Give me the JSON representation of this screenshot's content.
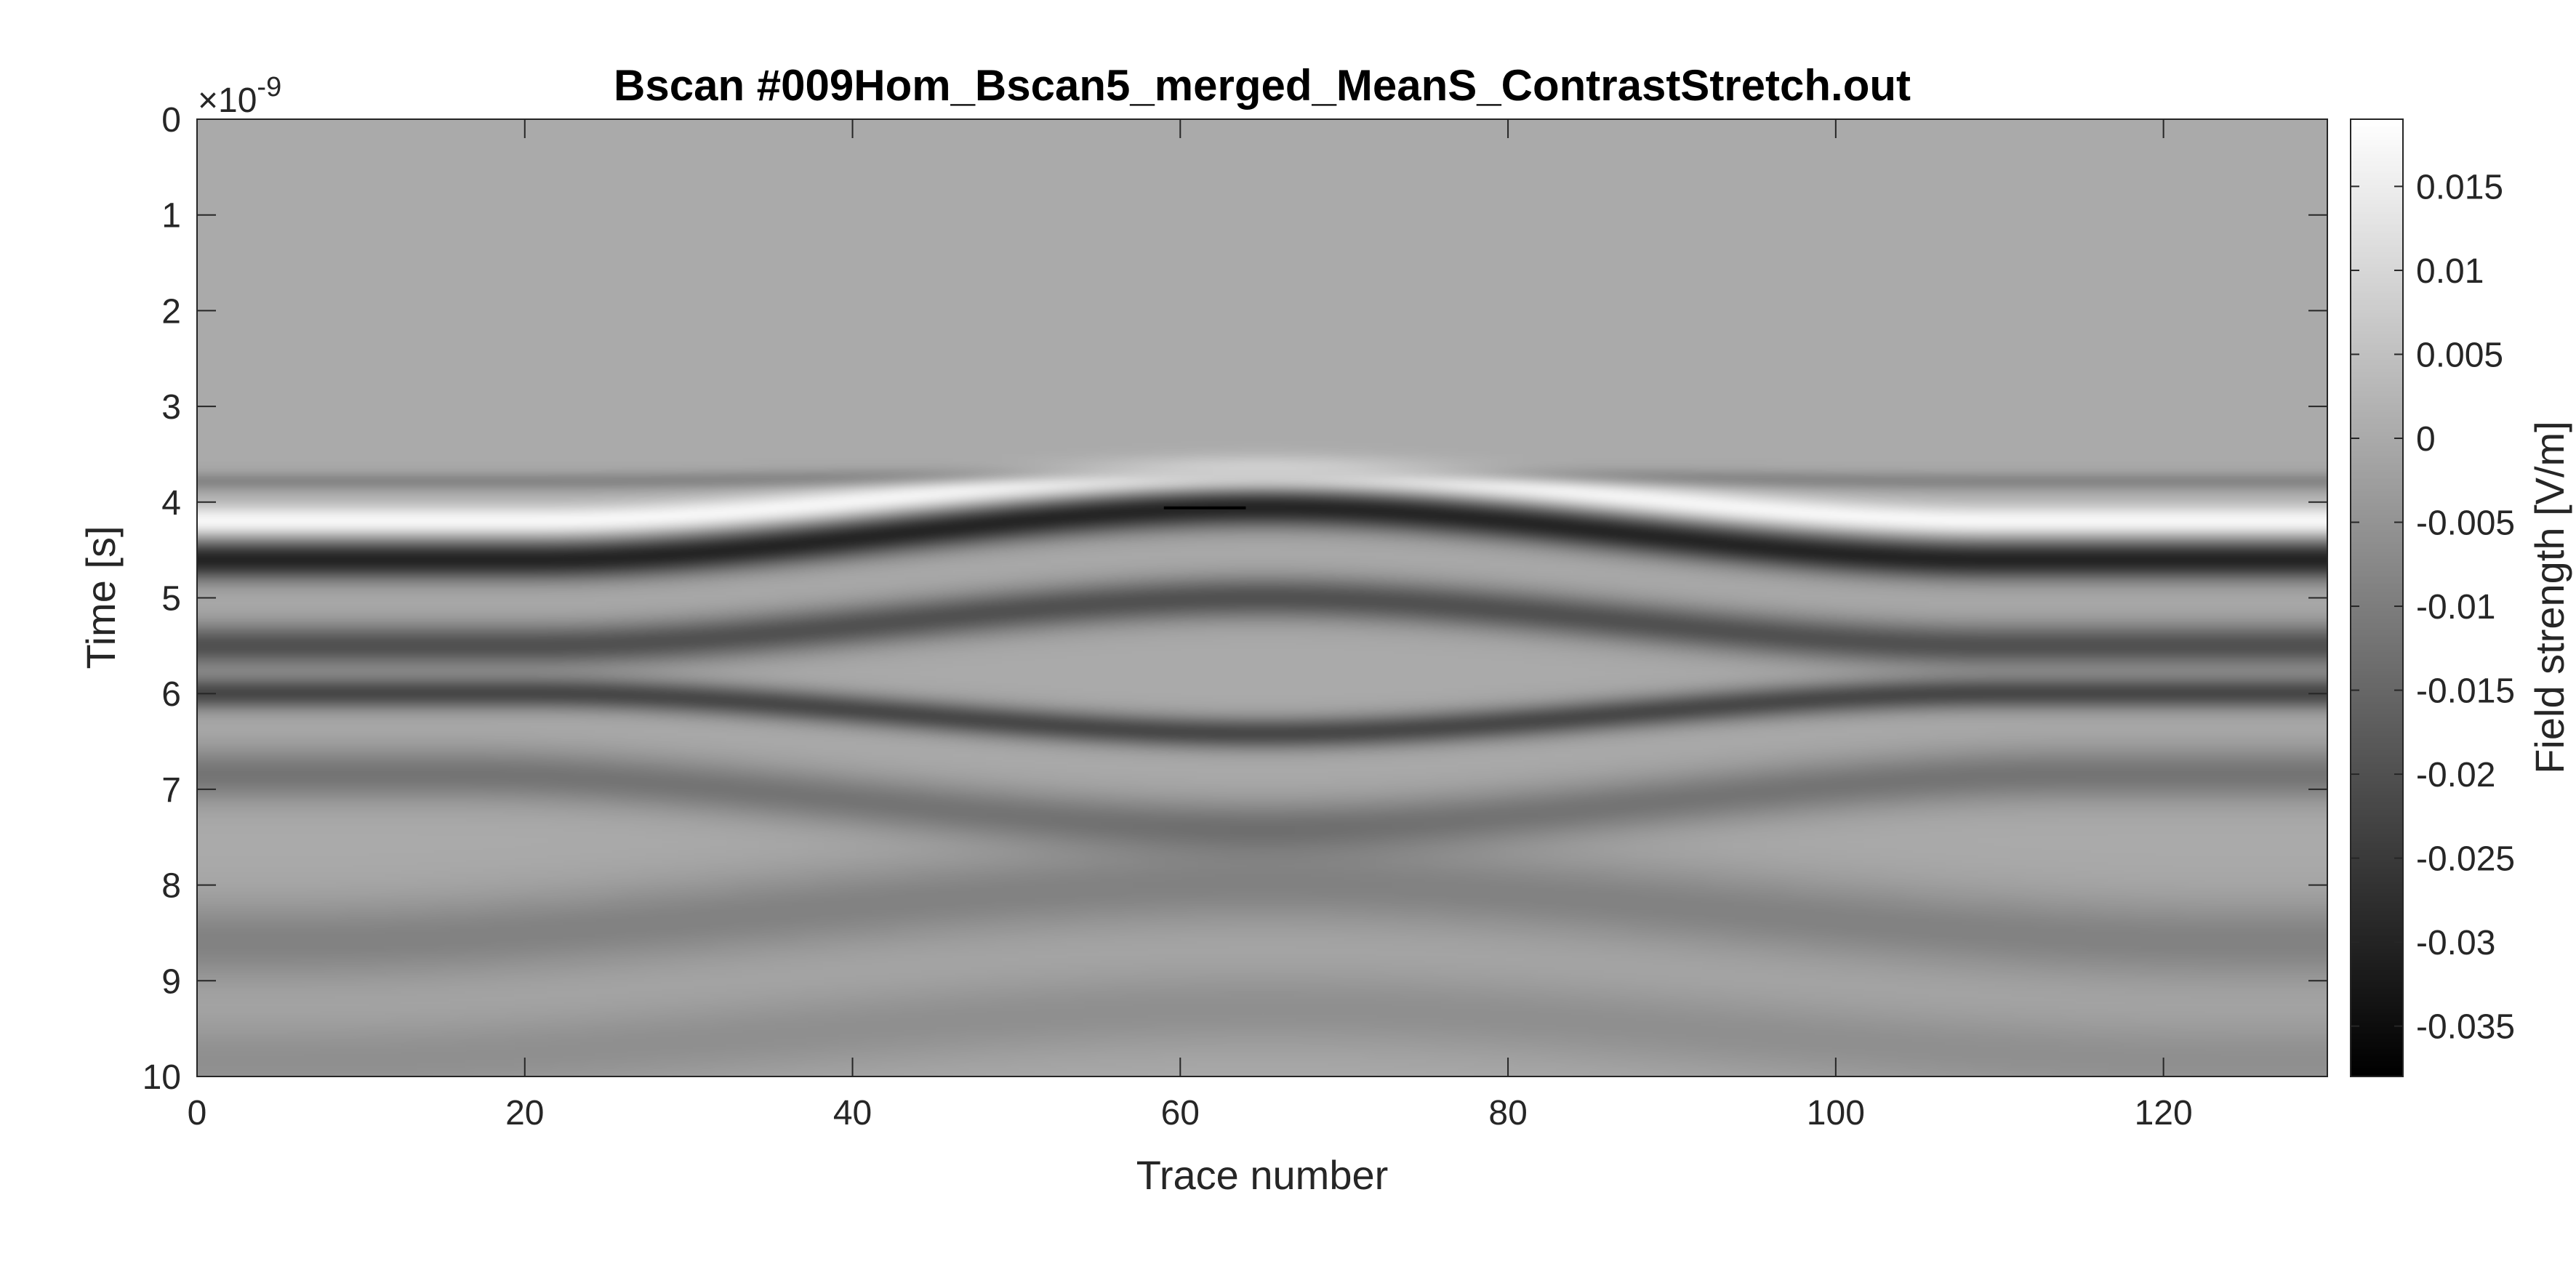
{
  "chart_data": {
    "type": "heatmap",
    "title": "Bscan #009Hom_Bscan5_merged_MeanS_ContrastStretch.out",
    "xlabel": "Trace number",
    "ylabel": "Time [s]",
    "y_exponent": {
      "base": "×10",
      "power": "-9"
    },
    "xlim": [
      0,
      130
    ],
    "ylim": [
      0,
      10
    ],
    "y_reversed": true,
    "x_ticks": [
      0,
      20,
      40,
      60,
      80,
      100,
      120
    ],
    "x_tick_labels": [
      "0",
      "20",
      "40",
      "60",
      "80",
      "100",
      "120"
    ],
    "y_ticks": [
      0,
      1,
      2,
      3,
      4,
      5,
      6,
      7,
      8,
      9,
      10
    ],
    "y_tick_labels": [
      "0",
      "1",
      "2",
      "3",
      "4",
      "5",
      "6",
      "7",
      "8",
      "9",
      "10"
    ],
    "colormap": "gray",
    "colorbar": {
      "label": "Field strength [V/m]",
      "clim": [
        -0.038,
        0.019
      ],
      "ticks": [
        0.015,
        0.01,
        0.005,
        0,
        -0.005,
        -0.01,
        -0.015,
        -0.02,
        -0.025,
        -0.03,
        -0.035
      ],
      "tick_labels": [
        "0.015",
        "0.01",
        "0.005",
        "0",
        "-0.005",
        "-0.01",
        "-0.015",
        "-0.02",
        "-0.025",
        "-0.03",
        "-0.035"
      ]
    },
    "background_value": 0,
    "reflections": [
      {
        "name": "direct-negative",
        "center_trace": 65,
        "apex_time": 4.05,
        "edge_time": 4.6,
        "half_width": 45,
        "amplitude": -0.03,
        "sigma": 0.15
      },
      {
        "name": "direct-pre",
        "center_trace": 65,
        "apex_time": 3.7,
        "edge_time": 3.78,
        "half_width": 45,
        "amplitude": -0.008,
        "sigma": 0.07
      },
      {
        "name": "direct-positive",
        "center_trace": 65,
        "apex_time": 3.72,
        "edge_time": 4.2,
        "half_width": 45,
        "amplitude": 0.018,
        "sigma": 0.12
      },
      {
        "name": "second",
        "center_trace": 65,
        "apex_time": 5.0,
        "edge_time": 5.5,
        "half_width": 45,
        "amplitude": -0.02,
        "sigma": 0.16
      },
      {
        "name": "third",
        "center_trace": 65,
        "apex_time": 6.42,
        "edge_time": 6.0,
        "half_width": 45,
        "amplitude": -0.022,
        "sigma": 0.12
      },
      {
        "name": "fourth",
        "center_trace": 65,
        "apex_time": 7.4,
        "edge_time": 6.85,
        "half_width": 50,
        "amplitude": -0.012,
        "sigma": 0.2
      },
      {
        "name": "deep-1",
        "center_trace": 65,
        "apex_time": 8.0,
        "edge_time": 8.6,
        "half_width": 60,
        "amplitude": -0.009,
        "sigma": 0.3
      },
      {
        "name": "deep-2",
        "center_trace": 65,
        "apex_time": 9.3,
        "edge_time": 9.85,
        "half_width": 60,
        "amplitude": -0.006,
        "sigma": 0.3
      }
    ],
    "marker": {
      "trace_start": 59,
      "trace_end": 64,
      "time": 4.06
    }
  }
}
